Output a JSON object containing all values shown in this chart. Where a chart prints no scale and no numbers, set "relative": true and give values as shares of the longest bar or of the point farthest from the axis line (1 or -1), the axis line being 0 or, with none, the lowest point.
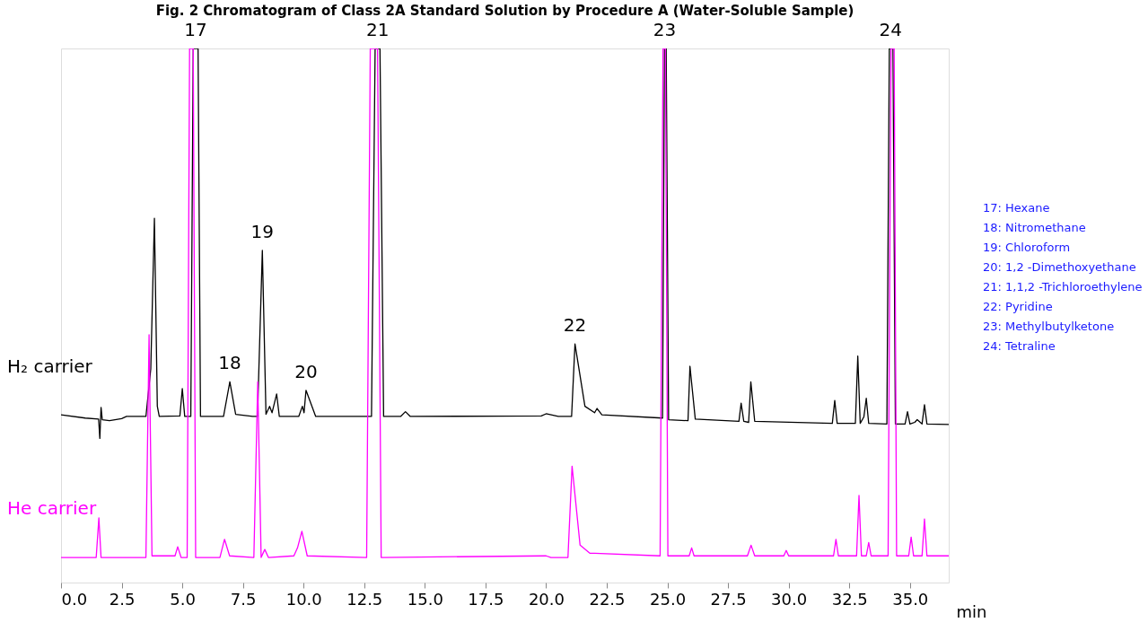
{
  "chart_data": {
    "type": "line",
    "relative": true,
    "title": "Fig. 2    Chromatogram of Class 2A Standard Solution by Procedure A (Water-Soluble Sample)",
    "xlabel": "min",
    "xlim": [
      0,
      36.6
    ],
    "xticks": [
      {
        "value": 0,
        "label": "0.0"
      },
      {
        "value": 2.5,
        "label": "2.5"
      },
      {
        "value": 5,
        "label": "5.0"
      },
      {
        "value": 7.5,
        "label": "7.5"
      },
      {
        "value": 10,
        "label": "10.0"
      },
      {
        "value": 12.5,
        "label": "12.5"
      },
      {
        "value": 15,
        "label": "15.0"
      },
      {
        "value": 17.5,
        "label": "17.5"
      },
      {
        "value": 20,
        "label": "20.0"
      },
      {
        "value": 22.5,
        "label": "22.5"
      },
      {
        "value": 25,
        "label": "25.0"
      },
      {
        "value": 27.5,
        "label": "27.5"
      },
      {
        "value": 30,
        "label": "30.0"
      },
      {
        "value": 32.5,
        "label": "32.5"
      },
      {
        "value": 35,
        "label": "35.0"
      }
    ],
    "grid": false,
    "legend": false,
    "line_style": "solid",
    "marker": "none",
    "series": [
      {
        "name": "H₂ carrier",
        "color": "#000000",
        "x": [
          0,
          1.0,
          1.55,
          1.6,
          1.65,
          1.7,
          2.0,
          2.5,
          2.7,
          3.5,
          3.7,
          3.85,
          3.97,
          4.05,
          4.9,
          5.0,
          5.1,
          5.35,
          5.45,
          5.65,
          5.75,
          6.7,
          6.96,
          7.2,
          7.9,
          8.1,
          8.3,
          8.45,
          8.6,
          8.7,
          8.89,
          9.0,
          9.8,
          9.95,
          10.02,
          10.1,
          10.5,
          12.8,
          12.95,
          13.15,
          13.3,
          14.0,
          14.2,
          14.4,
          19.8,
          20.0,
          20.5,
          21.05,
          21.19,
          21.6,
          22.0,
          22.1,
          22.3,
          24.8,
          24.88,
          24.95,
          25.05,
          25.85,
          25.93,
          26.15,
          27.95,
          28.04,
          28.15,
          28.35,
          28.44,
          28.6,
          31.8,
          31.9,
          32.0,
          32.75,
          32.85,
          32.95,
          33.1,
          33.2,
          33.3,
          34.05,
          34.15,
          34.3,
          34.4,
          34.8,
          34.9,
          35.0,
          35.2,
          35.3,
          35.5,
          35.6,
          35.7,
          36.6
        ],
        "values": [
          0.314,
          0.308,
          0.306,
          0.27,
          0.328,
          0.305,
          0.303,
          0.307,
          0.311,
          0.311,
          0.4,
          0.682,
          0.33,
          0.311,
          0.312,
          0.363,
          0.311,
          0.311,
          1,
          1,
          0.311,
          0.311,
          0.376,
          0.315,
          0.311,
          0.311,
          0.622,
          0.315,
          0.33,
          0.318,
          0.353,
          0.311,
          0.311,
          0.33,
          0.318,
          0.36,
          0.311,
          0.311,
          1,
          1,
          0.311,
          0.311,
          0.32,
          0.311,
          0.312,
          0.316,
          0.311,
          0.311,
          0.447,
          0.33,
          0.318,
          0.326,
          0.314,
          0.308,
          1,
          1,
          0.305,
          0.303,
          0.405,
          0.306,
          0.302,
          0.336,
          0.302,
          0.3,
          0.376,
          0.302,
          0.298,
          0.341,
          0.298,
          0.298,
          0.424,
          0.298,
          0.31,
          0.345,
          0.298,
          0.297,
          1,
          1,
          0.297,
          0.297,
          0.32,
          0.297,
          0.3,
          0.305,
          0.297,
          0.333,
          0.297,
          0.296
        ]
      },
      {
        "name": "He carrier",
        "color": "#ff00ff",
        "x": [
          0,
          1.45,
          1.56,
          1.65,
          3.5,
          3.63,
          3.75,
          4.7,
          4.81,
          4.95,
          5.2,
          5.3,
          5.45,
          5.55,
          6.55,
          6.74,
          6.95,
          7.95,
          8.11,
          8.25,
          8.4,
          8.55,
          9.6,
          9.75,
          9.93,
          10.15,
          12.6,
          12.75,
          13.05,
          13.2,
          20.0,
          20.2,
          20.9,
          21.07,
          21.4,
          21.8,
          22.0,
          24.7,
          24.82,
          24.92,
          25.02,
          25.9,
          26.0,
          26.1,
          28.3,
          28.45,
          28.6,
          29.8,
          29.9,
          30.0,
          31.85,
          31.95,
          32.05,
          32.8,
          32.9,
          33.0,
          33.2,
          33.3,
          33.4,
          34.1,
          34.22,
          34.35,
          34.45,
          34.95,
          35.05,
          35.15,
          35.5,
          35.6,
          35.7,
          36.6
        ],
        "values": [
          0.047,
          0.047,
          0.121,
          0.047,
          0.047,
          0.464,
          0.05,
          0.05,
          0.067,
          0.047,
          0.047,
          1,
          1,
          0.047,
          0.047,
          0.081,
          0.05,
          0.047,
          0.376,
          0.047,
          0.062,
          0.047,
          0.05,
          0.065,
          0.096,
          0.05,
          0.047,
          1,
          1,
          0.047,
          0.05,
          0.047,
          0.047,
          0.218,
          0.07,
          0.055,
          0.055,
          0.05,
          1,
          1,
          0.05,
          0.05,
          0.065,
          0.05,
          0.05,
          0.07,
          0.05,
          0.05,
          0.06,
          0.05,
          0.05,
          0.081,
          0.05,
          0.05,
          0.163,
          0.05,
          0.05,
          0.075,
          0.05,
          0.05,
          1,
          1,
          0.05,
          0.05,
          0.085,
          0.05,
          0.05,
          0.119,
          0.05,
          0.05
        ]
      }
    ],
    "annotations": [
      {
        "text": "17",
        "x": 5.55,
        "y": 1
      },
      {
        "text": "18",
        "x": 6.96,
        "y": 0.376
      },
      {
        "text": "19",
        "x": 8.3,
        "y": 0.622
      },
      {
        "text": "20",
        "x": 10.1,
        "y": 0.36
      },
      {
        "text": "21",
        "x": 13.05,
        "y": 1
      },
      {
        "text": "22",
        "x": 21.19,
        "y": 0.447
      },
      {
        "text": "23",
        "x": 24.89,
        "y": 1
      },
      {
        "text": "24",
        "x": 34.2,
        "y": 1
      },
      "17: Hexane",
      "18: Nitromethane",
      "19: Chloroform",
      "20: 1,2 -Dimethoxyethane",
      "21: 1,1,2 -Trichloroethylene",
      "22: Pyridine",
      "23: Methylbutylketone",
      "24: Tetraline"
    ]
  }
}
